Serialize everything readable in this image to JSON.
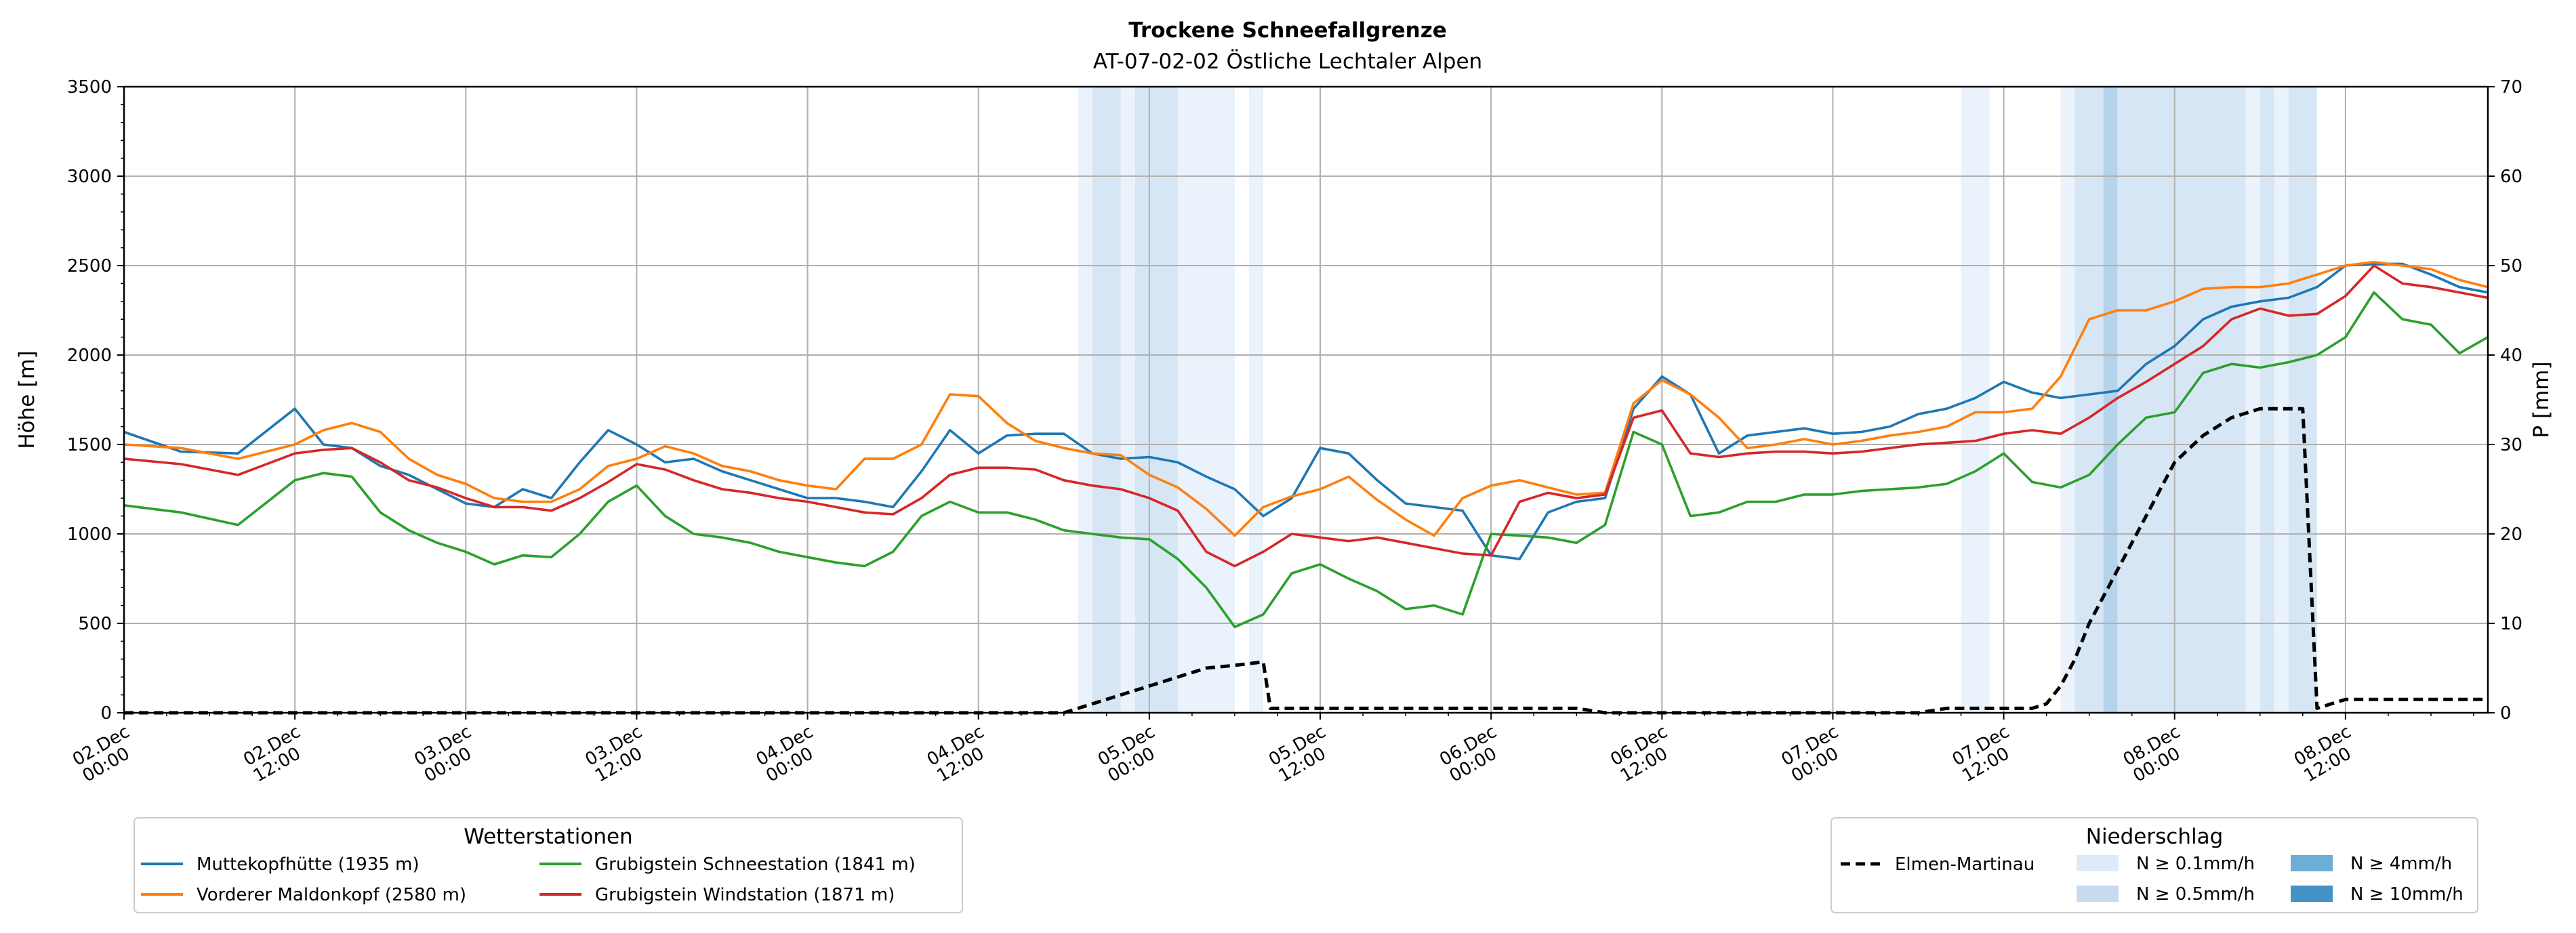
{
  "chart_data": {
    "type": "line",
    "title": "Trockene Schneefallgrenze",
    "subtitle": "AT-07-02-02 Östliche Lechtaler Alpen",
    "ylabel": "Höhe [m]",
    "ylabel_right": "P [mm]",
    "ylim": [
      0,
      3500
    ],
    "ylim_right": [
      0,
      70
    ],
    "yticks": [
      "0",
      "500",
      "1000",
      "1500",
      "2000",
      "2500",
      "3000",
      "3500"
    ],
    "yticks_right": [
      "0",
      "10",
      "20",
      "30",
      "40",
      "50",
      "60",
      "70"
    ],
    "grid": true,
    "x_range_hours": [
      0,
      166
    ],
    "xticks": [
      {
        "h": 0,
        "l1": "02.Dec",
        "l2": "00:00"
      },
      {
        "h": 12,
        "l1": "02.Dec",
        "l2": "12:00"
      },
      {
        "h": 24,
        "l1": "03.Dec",
        "l2": "00:00"
      },
      {
        "h": 36,
        "l1": "03.Dec",
        "l2": "12:00"
      },
      {
        "h": 48,
        "l1": "04.Dec",
        "l2": "00:00"
      },
      {
        "h": 60,
        "l1": "04.Dec",
        "l2": "12:00"
      },
      {
        "h": 72,
        "l1": "05.Dec",
        "l2": "00:00"
      },
      {
        "h": 84,
        "l1": "05.Dec",
        "l2": "12:00"
      },
      {
        "h": 96,
        "l1": "06.Dec",
        "l2": "00:00"
      },
      {
        "h": 108,
        "l1": "06.Dec",
        "l2": "12:00"
      },
      {
        "h": 120,
        "l1": "07.Dec",
        "l2": "00:00"
      },
      {
        "h": 132,
        "l1": "07.Dec",
        "l2": "12:00"
      },
      {
        "h": 144,
        "l1": "08.Dec",
        "l2": "00:00"
      },
      {
        "h": 156,
        "l1": "08.Dec",
        "l2": "12:00"
      }
    ],
    "series": [
      {
        "name": "Muttekopfhütte (1935 m)",
        "color": "#1f77b4",
        "x": [
          0,
          4,
          8,
          12,
          14,
          16,
          18,
          20,
          22,
          24,
          26,
          28,
          30,
          32,
          34,
          36,
          38,
          40,
          42,
          44,
          46,
          48,
          50,
          52,
          54,
          56,
          58,
          60,
          62,
          64,
          66,
          68,
          70,
          72,
          74,
          76,
          78,
          80,
          82,
          84,
          86,
          88,
          90,
          92,
          94,
          96,
          98,
          100,
          102,
          104,
          106,
          108,
          110,
          112,
          114,
          116,
          118,
          120,
          122,
          124,
          126,
          128,
          130,
          132,
          134,
          136,
          138,
          140,
          142,
          144,
          146,
          148,
          150,
          152,
          154,
          156,
          158,
          160,
          162,
          164,
          166
        ],
        "y": [
          1570,
          1460,
          1450,
          1700,
          1500,
          1480,
          1380,
          1330,
          1250,
          1170,
          1150,
          1250,
          1200,
          1400,
          1580,
          1500,
          1400,
          1420,
          1350,
          1300,
          1250,
          1200,
          1200,
          1180,
          1150,
          1350,
          1580,
          1450,
          1550,
          1560,
          1560,
          1450,
          1420,
          1430,
          1400,
          1320,
          1250,
          1100,
          1200,
          1480,
          1450,
          1300,
          1170,
          1150,
          1130,
          880,
          860,
          1120,
          1180,
          1200,
          1700,
          1880,
          1780,
          1450,
          1550,
          1570,
          1590,
          1560,
          1570,
          1600,
          1670,
          1700,
          1760,
          1850,
          1790,
          1760,
          1780,
          1800,
          1950,
          2050,
          2200,
          2270,
          2300,
          2320,
          2380,
          2500,
          2510,
          2510,
          2450,
          2380,
          2350
        ]
      },
      {
        "name": "Vorderer Maldonkopf (2580 m)",
        "color": "#ff7f0e",
        "x": [
          0,
          4,
          8,
          12,
          14,
          16,
          18,
          20,
          22,
          24,
          26,
          28,
          30,
          32,
          34,
          36,
          38,
          40,
          42,
          44,
          46,
          48,
          50,
          52,
          54,
          56,
          58,
          60,
          62,
          64,
          66,
          68,
          70,
          72,
          74,
          76,
          78,
          80,
          82,
          84,
          86,
          88,
          90,
          92,
          94,
          96,
          98,
          100,
          102,
          104,
          106,
          108,
          110,
          112,
          114,
          116,
          118,
          120,
          122,
          124,
          126,
          128,
          130,
          132,
          134,
          136,
          138,
          140,
          142,
          144,
          146,
          148,
          150,
          152,
          154,
          156,
          158,
          160,
          162,
          164,
          166
        ],
        "y": [
          1500,
          1480,
          1420,
          1500,
          1580,
          1620,
          1570,
          1420,
          1330,
          1280,
          1200,
          1180,
          1180,
          1250,
          1380,
          1420,
          1490,
          1450,
          1380,
          1350,
          1300,
          1270,
          1250,
          1420,
          1420,
          1500,
          1780,
          1770,
          1620,
          1520,
          1480,
          1450,
          1440,
          1330,
          1260,
          1140,
          990,
          1150,
          1210,
          1250,
          1320,
          1190,
          1080,
          990,
          1200,
          1270,
          1300,
          1260,
          1220,
          1230,
          1730,
          1860,
          1780,
          1650,
          1480,
          1500,
          1530,
          1500,
          1520,
          1550,
          1570,
          1600,
          1680,
          1680,
          1700,
          1880,
          2200,
          2250,
          2250,
          2300,
          2370,
          2380,
          2380,
          2400,
          2450,
          2500,
          2520,
          2500,
          2480,
          2420,
          2380
        ]
      },
      {
        "name": "Grubigstein Schneestation (1841 m)",
        "color": "#2ca02c",
        "x": [
          0,
          4,
          8,
          12,
          14,
          16,
          18,
          20,
          22,
          24,
          26,
          28,
          30,
          32,
          34,
          36,
          38,
          40,
          42,
          44,
          46,
          48,
          50,
          52,
          54,
          56,
          58,
          60,
          62,
          64,
          66,
          68,
          70,
          72,
          74,
          76,
          78,
          80,
          82,
          84,
          86,
          88,
          90,
          92,
          94,
          96,
          98,
          100,
          102,
          104,
          106,
          108,
          110,
          112,
          114,
          116,
          118,
          120,
          122,
          124,
          126,
          128,
          130,
          132,
          134,
          136,
          138,
          140,
          142,
          144,
          146,
          148,
          150,
          152,
          154,
          156,
          158,
          160,
          162,
          164,
          166
        ],
        "y": [
          1160,
          1120,
          1050,
          1300,
          1340,
          1320,
          1120,
          1020,
          950,
          900,
          830,
          880,
          870,
          1000,
          1180,
          1270,
          1100,
          1000,
          980,
          950,
          900,
          870,
          840,
          820,
          900,
          1100,
          1180,
          1120,
          1120,
          1080,
          1020,
          1000,
          980,
          970,
          860,
          700,
          480,
          550,
          780,
          830,
          750,
          680,
          580,
          600,
          550,
          1000,
          990,
          980,
          950,
          1050,
          1570,
          1500,
          1100,
          1120,
          1180,
          1180,
          1220,
          1220,
          1240,
          1250,
          1260,
          1280,
          1350,
          1450,
          1290,
          1260,
          1330,
          1500,
          1650,
          1680,
          1900,
          1950,
          1930,
          1960,
          2000,
          2100,
          2350,
          2200,
          2170,
          2010,
          2100
        ]
      },
      {
        "name": "Grubigstein Windstation (1871 m)",
        "color": "#d62728",
        "x": [
          0,
          4,
          8,
          12,
          14,
          16,
          18,
          20,
          22,
          24,
          26,
          28,
          30,
          32,
          34,
          36,
          38,
          40,
          42,
          44,
          46,
          48,
          50,
          52,
          54,
          56,
          58,
          60,
          62,
          64,
          66,
          68,
          70,
          72,
          74,
          76,
          78,
          80,
          82,
          84,
          86,
          88,
          90,
          92,
          94,
          96,
          98,
          100,
          102,
          104,
          106,
          108,
          110,
          112,
          114,
          116,
          118,
          120,
          122,
          124,
          126,
          128,
          130,
          132,
          134,
          136,
          138,
          140,
          142,
          144,
          146,
          148,
          150,
          152,
          154,
          156,
          158,
          160,
          162,
          164,
          166
        ],
        "y": [
          1420,
          1390,
          1330,
          1450,
          1470,
          1480,
          1400,
          1300,
          1260,
          1200,
          1150,
          1150,
          1130,
          1200,
          1290,
          1390,
          1360,
          1300,
          1250,
          1230,
          1200,
          1180,
          1150,
          1120,
          1110,
          1200,
          1330,
          1370,
          1370,
          1360,
          1300,
          1270,
          1250,
          1200,
          1130,
          900,
          820,
          900,
          1000,
          980,
          960,
          980,
          950,
          920,
          890,
          880,
          1180,
          1230,
          1200,
          1220,
          1650,
          1690,
          1450,
          1430,
          1450,
          1460,
          1460,
          1450,
          1460,
          1480,
          1500,
          1510,
          1520,
          1560,
          1580,
          1560,
          1650,
          1760,
          1850,
          1950,
          2050,
          2200,
          2260,
          2220,
          2230,
          2330,
          2500,
          2400,
          2380,
          2350,
          2320
        ]
      },
      {
        "name": "Elmen-Martinau",
        "color": "#000000",
        "dashed": true,
        "axis": "right",
        "x": [
          0,
          66,
          67,
          68,
          70,
          72,
          74,
          76,
          78,
          80,
          80.5,
          89,
          102,
          104,
          126,
          128,
          130,
          134,
          135,
          136,
          137,
          138,
          140,
          142,
          144,
          146,
          148,
          150,
          152,
          153,
          154,
          155,
          156,
          160,
          166
        ],
        "y": [
          0,
          0,
          0.5,
          1,
          2,
          3,
          4,
          5,
          5.3,
          5.7,
          0.5,
          0.5,
          0.5,
          0,
          0,
          0.5,
          0.5,
          0.5,
          1,
          3,
          6,
          10,
          16,
          22,
          28,
          31,
          33,
          34,
          34,
          34,
          0.5,
          1,
          1.5,
          1.5,
          1.5
        ]
      }
    ],
    "precip_bands": [
      {
        "from": 67.0,
        "to": 68.0,
        "level": 1
      },
      {
        "from": 68.0,
        "to": 70.0,
        "level": 2
      },
      {
        "from": 70.0,
        "to": 71.0,
        "level": 1
      },
      {
        "from": 71.0,
        "to": 74.0,
        "level": 2
      },
      {
        "from": 74.0,
        "to": 78.0,
        "level": 1
      },
      {
        "from": 79.0,
        "to": 80.0,
        "level": 1
      },
      {
        "from": 129.0,
        "to": 131.0,
        "level": 1
      },
      {
        "from": 136.0,
        "to": 137.0,
        "level": 1
      },
      {
        "from": 137.0,
        "to": 138.0,
        "level": 2
      },
      {
        "from": 138.0,
        "to": 139.0,
        "level": 2
      },
      {
        "from": 139.0,
        "to": 140.0,
        "level": 3
      },
      {
        "from": 140.0,
        "to": 149.0,
        "level": 2
      },
      {
        "from": 149.0,
        "to": 150.0,
        "level": 1
      },
      {
        "from": 150.0,
        "to": 151.0,
        "level": 2
      },
      {
        "from": 151.0,
        "to": 152.0,
        "level": 1
      },
      {
        "from": 152.0,
        "to": 154.0,
        "level": 2
      }
    ],
    "legend_stations": {
      "title": "Wetterstationen",
      "placement": "bottom-left"
    },
    "legend_precip": {
      "title": "Niederschlag",
      "placement": "bottom-right",
      "items": [
        {
          "label": "N ≥ 0.1mm/h",
          "color": "#deebf7"
        },
        {
          "label": "N ≥ 0.5mm/h",
          "color": "#c6dbef"
        },
        {
          "label": "N ≥ 4mm/h",
          "color": "#6baed6"
        },
        {
          "label": "N ≥ 10mm/h",
          "color": "#4292c6"
        }
      ]
    },
    "band_colors": {
      "1": "#eaf2fb",
      "2": "#d6e6f4",
      "3": "#b5d3ea"
    }
  }
}
